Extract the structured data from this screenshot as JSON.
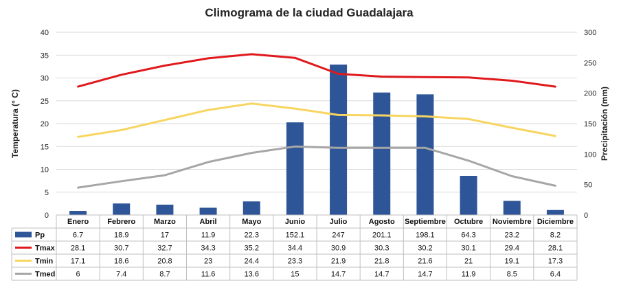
{
  "chart_data": {
    "type": "bar+line",
    "title": "Climograma de la ciudad Guadalajara",
    "ylabel_left": "Temperatura (° C)",
    "ylabel_right": "Precipitación (mm)",
    "ylim_left": [
      0,
      40
    ],
    "ylim_right": [
      0,
      300
    ],
    "yticks_left": [
      "0",
      "5",
      "10",
      "15",
      "20",
      "25",
      "30",
      "35",
      "40"
    ],
    "yticks_right": [
      "0",
      "50",
      "100",
      "150",
      "200",
      "250",
      "300"
    ],
    "categories": [
      "Enero",
      "Febrero",
      "Marzo",
      "Abril",
      "Mayo",
      "Junio",
      "Julio",
      "Agosto",
      "Septiembre",
      "Octubre",
      "Noviembre",
      "Diciembre"
    ],
    "series": [
      {
        "name": "Pp",
        "kind": "bar",
        "axis": "right",
        "color": "#2E5597",
        "values": [
          6.7,
          18.9,
          17,
          11.9,
          22.3,
          152.1,
          247,
          201.1,
          198.1,
          64.3,
          23.2,
          8.2
        ],
        "labels": [
          "6.7",
          "18.9",
          "17",
          "11.9",
          "22.3",
          "152.1",
          "247",
          "201.1",
          "198.1",
          "64.3",
          "23.2",
          "8.2"
        ]
      },
      {
        "name": "Tmax",
        "kind": "line",
        "axis": "left",
        "color": "#E0191C",
        "values": [
          28.1,
          30.7,
          32.7,
          34.3,
          35.2,
          34.4,
          30.9,
          30.3,
          30.2,
          30.1,
          29.4,
          28.1
        ],
        "labels": [
          "28.1",
          "30.7",
          "32.7",
          "34.3",
          "35.2",
          "34.4",
          "30.9",
          "30.3",
          "30.2",
          "30.1",
          "29.4",
          "28.1"
        ]
      },
      {
        "name": "Tmin",
        "kind": "line",
        "axis": "left",
        "color": "#F7D560",
        "values": [
          17.1,
          18.6,
          20.8,
          23,
          24.4,
          23.3,
          21.9,
          21.8,
          21.6,
          21,
          19.1,
          17.3
        ],
        "labels": [
          "17.1",
          "18.6",
          "20.8",
          "23",
          "24.4",
          "23.3",
          "21.9",
          "21.8",
          "21.6",
          "21",
          "19.1",
          "17.3"
        ]
      },
      {
        "name": "Tmed",
        "kind": "line",
        "axis": "left",
        "color": "#A6A6A6",
        "values": [
          6,
          7.4,
          8.7,
          11.6,
          13.6,
          15,
          14.7,
          14.7,
          14.7,
          11.9,
          8.5,
          6.4
        ],
        "labels": [
          "6",
          "7.4",
          "8.7",
          "11.6",
          "13.6",
          "15",
          "14.7",
          "14.7",
          "14.7",
          "11.9",
          "8.5",
          "6.4"
        ]
      }
    ],
    "grid": true,
    "legend": "data-table below chart"
  }
}
